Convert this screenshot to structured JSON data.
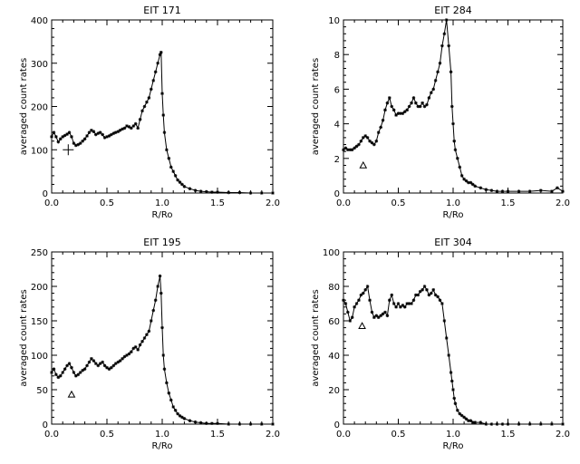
{
  "colors": {
    "background": "#ffffff",
    "ink": "#000000"
  },
  "chart_data": [
    {
      "type": "line",
      "title": "EIT 171",
      "xlabel": "R/Ro",
      "ylabel": "averaged count rates",
      "xlim": [
        0.0,
        2.0
      ],
      "ylim": [
        0,
        400
      ],
      "xticks": [
        0.0,
        0.5,
        1.0,
        1.5,
        2.0
      ],
      "xtick_labels": [
        "0.0",
        "0.5",
        "1.0",
        "1.5",
        "2.0"
      ],
      "yticks": [
        0,
        100,
        200,
        300,
        400
      ],
      "ytick_labels": [
        "0",
        "100",
        "200",
        "300",
        "400"
      ],
      "marker_symbol": "plus",
      "marker_point": [
        0.15,
        100
      ],
      "series": [
        {
          "x": [
            0.0,
            0.02,
            0.04,
            0.06,
            0.08,
            0.1,
            0.12,
            0.14,
            0.16,
            0.18,
            0.2,
            0.22,
            0.24,
            0.26,
            0.28,
            0.3,
            0.32,
            0.34,
            0.36,
            0.38,
            0.4,
            0.42,
            0.44,
            0.46,
            0.48,
            0.5,
            0.52,
            0.54,
            0.56,
            0.58,
            0.6,
            0.62,
            0.64,
            0.66,
            0.68,
            0.7,
            0.72,
            0.74,
            0.76,
            0.78,
            0.8,
            0.82,
            0.84,
            0.86,
            0.88,
            0.9,
            0.92,
            0.94,
            0.96,
            0.98,
            0.99,
            1.0,
            1.01,
            1.02,
            1.04,
            1.06,
            1.08,
            1.1,
            1.12,
            1.14,
            1.16,
            1.18,
            1.2,
            1.25,
            1.3,
            1.35,
            1.4,
            1.45,
            1.5,
            1.6,
            1.7,
            1.8,
            1.9,
            2.0
          ],
          "y": [
            130,
            140,
            130,
            118,
            125,
            130,
            133,
            136,
            140,
            130,
            115,
            110,
            112,
            115,
            120,
            125,
            132,
            140,
            145,
            142,
            135,
            138,
            140,
            135,
            128,
            130,
            132,
            135,
            138,
            140,
            142,
            145,
            148,
            150,
            155,
            153,
            150,
            155,
            160,
            150,
            170,
            190,
            200,
            210,
            220,
            240,
            260,
            280,
            300,
            320,
            325,
            230,
            180,
            140,
            100,
            80,
            60,
            50,
            40,
            30,
            25,
            20,
            15,
            10,
            6,
            4,
            3,
            2,
            2,
            1,
            1,
            0,
            0,
            0
          ]
        }
      ]
    },
    {
      "type": "line",
      "title": "EIT 284",
      "xlabel": "R/Ro",
      "ylabel": "averaged count rates",
      "xlim": [
        0.0,
        2.0
      ],
      "ylim": [
        0,
        10
      ],
      "xticks": [
        0.0,
        0.5,
        1.0,
        1.5,
        2.0
      ],
      "xtick_labels": [
        "0.0",
        "0.5",
        "1.0",
        "1.5",
        "2.0"
      ],
      "yticks": [
        0,
        2,
        4,
        6,
        8,
        10
      ],
      "ytick_labels": [
        "0",
        "2",
        "4",
        "6",
        "8",
        "10"
      ],
      "marker_symbol": "triangle",
      "marker_point": [
        0.18,
        1.6
      ],
      "series": [
        {
          "x": [
            0.0,
            0.02,
            0.04,
            0.06,
            0.08,
            0.1,
            0.12,
            0.14,
            0.16,
            0.18,
            0.2,
            0.22,
            0.24,
            0.26,
            0.28,
            0.3,
            0.32,
            0.34,
            0.36,
            0.38,
            0.4,
            0.42,
            0.44,
            0.46,
            0.48,
            0.5,
            0.52,
            0.54,
            0.56,
            0.58,
            0.6,
            0.62,
            0.64,
            0.66,
            0.68,
            0.7,
            0.72,
            0.74,
            0.76,
            0.78,
            0.8,
            0.82,
            0.84,
            0.86,
            0.88,
            0.9,
            0.92,
            0.94,
            0.96,
            0.98,
            0.99,
            1.0,
            1.01,
            1.02,
            1.04,
            1.06,
            1.08,
            1.1,
            1.12,
            1.14,
            1.16,
            1.18,
            1.2,
            1.25,
            1.3,
            1.35,
            1.4,
            1.45,
            1.5,
            1.6,
            1.7,
            1.8,
            1.9,
            1.95,
            2.0
          ],
          "y": [
            2.5,
            2.6,
            2.5,
            2.5,
            2.5,
            2.6,
            2.7,
            2.8,
            3.0,
            3.2,
            3.3,
            3.2,
            3.0,
            2.9,
            2.8,
            3.0,
            3.5,
            3.8,
            4.2,
            4.8,
            5.2,
            5.5,
            5.0,
            4.8,
            4.5,
            4.6,
            4.6,
            4.6,
            4.7,
            4.8,
            5.0,
            5.2,
            5.5,
            5.2,
            5.0,
            5.0,
            5.2,
            5.0,
            5.1,
            5.5,
            5.8,
            6.0,
            6.5,
            7.0,
            7.5,
            8.5,
            9.2,
            10.0,
            8.5,
            7.0,
            5.0,
            4.0,
            3.0,
            2.5,
            2.0,
            1.5,
            1.0,
            0.8,
            0.7,
            0.6,
            0.6,
            0.5,
            0.4,
            0.3,
            0.2,
            0.15,
            0.1,
            0.1,
            0.1,
            0.1,
            0.1,
            0.15,
            0.1,
            0.3,
            0.1
          ]
        }
      ]
    },
    {
      "type": "line",
      "title": "EIT 195",
      "xlabel": "R/Ro",
      "ylabel": "averaged count rates",
      "xlim": [
        0.0,
        2.0
      ],
      "ylim": [
        0,
        250
      ],
      "xticks": [
        0.0,
        0.5,
        1.0,
        1.5,
        2.0
      ],
      "xtick_labels": [
        "0.0",
        "0.5",
        "1.0",
        "1.5",
        "2.0"
      ],
      "yticks": [
        0,
        50,
        100,
        150,
        200,
        250
      ],
      "ytick_labels": [
        "0",
        "50",
        "100",
        "150",
        "200",
        "250"
      ],
      "marker_symbol": "triangle",
      "marker_point": [
        0.18,
        43
      ],
      "series": [
        {
          "x": [
            0.0,
            0.02,
            0.04,
            0.06,
            0.08,
            0.1,
            0.12,
            0.14,
            0.16,
            0.18,
            0.2,
            0.22,
            0.24,
            0.26,
            0.28,
            0.3,
            0.32,
            0.34,
            0.36,
            0.38,
            0.4,
            0.42,
            0.44,
            0.46,
            0.48,
            0.5,
            0.52,
            0.54,
            0.56,
            0.58,
            0.6,
            0.62,
            0.64,
            0.66,
            0.68,
            0.7,
            0.72,
            0.74,
            0.76,
            0.78,
            0.8,
            0.82,
            0.84,
            0.86,
            0.88,
            0.9,
            0.92,
            0.94,
            0.96,
            0.98,
            0.99,
            1.0,
            1.01,
            1.02,
            1.04,
            1.06,
            1.08,
            1.1,
            1.12,
            1.14,
            1.16,
            1.18,
            1.2,
            1.25,
            1.3,
            1.35,
            1.4,
            1.45,
            1.5,
            1.6,
            1.7,
            1.8,
            1.9,
            2.0
          ],
          "y": [
            75,
            80,
            72,
            68,
            70,
            75,
            80,
            85,
            88,
            82,
            75,
            70,
            72,
            75,
            78,
            80,
            85,
            90,
            95,
            92,
            88,
            85,
            88,
            90,
            85,
            82,
            80,
            82,
            85,
            88,
            90,
            92,
            95,
            98,
            100,
            102,
            105,
            110,
            112,
            108,
            115,
            120,
            125,
            130,
            135,
            150,
            165,
            180,
            200,
            215,
            190,
            140,
            100,
            80,
            60,
            45,
            35,
            25,
            20,
            15,
            12,
            10,
            8,
            5,
            3,
            2,
            1,
            1,
            1,
            0,
            0,
            0,
            0,
            0
          ]
        }
      ]
    },
    {
      "type": "line",
      "title": "EIT 304",
      "xlabel": "R/Ro",
      "ylabel": "averaged count rates",
      "xlim": [
        0.0,
        2.0
      ],
      "ylim": [
        0,
        100
      ],
      "xticks": [
        0.0,
        0.5,
        1.0,
        1.5,
        2.0
      ],
      "xtick_labels": [
        "0.0",
        "0.5",
        "1.0",
        "1.5",
        "2.0"
      ],
      "yticks": [
        0,
        20,
        40,
        60,
        80,
        100
      ],
      "ytick_labels": [
        "0",
        "20",
        "40",
        "60",
        "80",
        "100"
      ],
      "marker_symbol": "triangle",
      "marker_point": [
        0.17,
        57
      ],
      "series": [
        {
          "x": [
            0.0,
            0.02,
            0.04,
            0.06,
            0.08,
            0.1,
            0.12,
            0.14,
            0.16,
            0.18,
            0.2,
            0.22,
            0.24,
            0.26,
            0.28,
            0.3,
            0.32,
            0.34,
            0.36,
            0.38,
            0.4,
            0.42,
            0.44,
            0.46,
            0.48,
            0.5,
            0.52,
            0.54,
            0.56,
            0.58,
            0.6,
            0.62,
            0.64,
            0.66,
            0.68,
            0.7,
            0.72,
            0.74,
            0.76,
            0.78,
            0.8,
            0.82,
            0.84,
            0.86,
            0.88,
            0.9,
            0.92,
            0.94,
            0.96,
            0.98,
            0.99,
            1.0,
            1.01,
            1.02,
            1.04,
            1.06,
            1.08,
            1.1,
            1.12,
            1.14,
            1.16,
            1.18,
            1.2,
            1.25,
            1.3,
            1.35,
            1.4,
            1.45,
            1.5,
            1.6,
            1.7,
            1.8,
            1.9,
            2.0
          ],
          "y": [
            72,
            70,
            65,
            60,
            62,
            68,
            70,
            72,
            75,
            76,
            78,
            80,
            72,
            65,
            62,
            63,
            62,
            63,
            64,
            65,
            63,
            72,
            75,
            70,
            68,
            70,
            68,
            69,
            68,
            70,
            70,
            70,
            72,
            75,
            75,
            77,
            78,
            80,
            78,
            75,
            76,
            78,
            75,
            74,
            72,
            70,
            60,
            50,
            40,
            30,
            25,
            20,
            15,
            12,
            8,
            6,
            5,
            4,
            3,
            2,
            2,
            1,
            1,
            1,
            0,
            0,
            0,
            0,
            0,
            0,
            0,
            0,
            0,
            0
          ]
        }
      ]
    }
  ]
}
